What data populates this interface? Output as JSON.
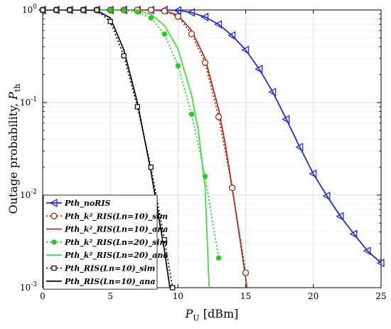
{
  "chart_data": {
    "type": "line",
    "title": "",
    "xlabel": "P_U [dBm]",
    "ylabel": "Outage probability, P_th",
    "xlim": [
      0,
      25
    ],
    "ylim": [
      0.001,
      1
    ],
    "yscale": "log",
    "x_ticks": [
      0,
      5,
      10,
      15,
      20,
      25
    ],
    "y_ticks": [
      {
        "value": 1,
        "label": "10^0"
      },
      {
        "value": 0.1,
        "label": "10^-1"
      },
      {
        "value": 0.01,
        "label": "10^-2"
      },
      {
        "value": 0.001,
        "label": "10^-3"
      }
    ],
    "grid": true,
    "legend_position": "bottom-left",
    "series": [
      {
        "name": "Pth_noRIS",
        "color": "#1f2fd6",
        "dash": "solid",
        "marker": "triangle-left",
        "marker_fill": "none",
        "x": [
          0,
          1,
          2,
          3,
          4,
          5,
          6,
          7,
          8,
          9,
          10,
          11,
          12,
          13,
          14,
          15,
          16,
          17,
          18,
          19,
          20,
          21,
          22,
          23,
          24,
          25
        ],
        "y": [
          1,
          1,
          1,
          1,
          1,
          1,
          1,
          1,
          1,
          1,
          0.99,
          0.94,
          0.84,
          0.7,
          0.53,
          0.37,
          0.23,
          0.13,
          0.066,
          0.033,
          0.017,
          0.0098,
          0.0059,
          0.0038,
          0.0025,
          0.00185
        ]
      },
      {
        "name": "Pth_k²_RIS(Ln=10)_sim",
        "color": "#a52a00",
        "dash": "dotted",
        "marker": "circle",
        "marker_fill": "none",
        "x": [
          0,
          1,
          2,
          3,
          4,
          5,
          6,
          7,
          8,
          9,
          10,
          11,
          12,
          13,
          14,
          15
        ],
        "y": [
          1,
          1,
          1,
          1,
          1,
          1,
          1,
          1,
          1,
          0.97,
          0.85,
          0.55,
          0.27,
          0.07,
          0.012,
          0.00145
        ]
      },
      {
        "name": "Pth_k²_RIS(Ln=10)_ana",
        "color": "#b03020",
        "dash": "solid",
        "marker": "none",
        "marker_fill": "none",
        "x": [
          0,
          1,
          2,
          3,
          4,
          5,
          6,
          7,
          8,
          9,
          10,
          11,
          12,
          13,
          13.5,
          14,
          14.5,
          15.1
        ],
        "y": [
          1,
          1,
          1,
          1,
          1,
          1,
          1,
          1,
          1,
          0.98,
          0.88,
          0.6,
          0.3,
          0.085,
          0.035,
          0.012,
          0.004,
          0.001
        ]
      },
      {
        "name": "Pth_k²_RIS(Ln=20)_sim",
        "color": "#22cc22",
        "dash": "dotted",
        "marker": "circle",
        "marker_fill": "filled",
        "x": [
          0,
          1,
          2,
          3,
          4,
          5,
          6,
          7,
          8,
          9,
          10,
          11,
          12,
          13
        ],
        "y": [
          1,
          1,
          1,
          1,
          1,
          1,
          0.99,
          0.95,
          0.82,
          0.55,
          0.25,
          0.075,
          0.016,
          0.0021
        ]
      },
      {
        "name": "Pth_k²_RIS(Ln=20)_ana",
        "color": "#44dd44",
        "dash": "solid",
        "marker": "none",
        "marker_fill": "none",
        "x": [
          0,
          1,
          2,
          3,
          4,
          5,
          6,
          7,
          8,
          9,
          10,
          11,
          11.5,
          12,
          12.3
        ],
        "y": [
          1,
          1,
          1,
          1,
          1,
          1,
          1,
          0.98,
          0.9,
          0.68,
          0.38,
          0.12,
          0.05,
          0.012,
          0.001
        ]
      },
      {
        "name": "Pth_RIS(Ln=10)_sim",
        "color": "#111111",
        "dash": "dotted",
        "marker": "square",
        "marker_fill": "none",
        "x": [
          0,
          1,
          2,
          3,
          4,
          5,
          6,
          7,
          8,
          9,
          9.6
        ],
        "y": [
          1,
          1,
          1,
          1,
          1,
          0.75,
          0.32,
          0.09,
          0.02,
          0.0033,
          0.001
        ]
      },
      {
        "name": "Pth_RIS(Ln=10)_ana",
        "color": "#111111",
        "dash": "solid",
        "marker": "none",
        "marker_fill": "none",
        "x": [
          0,
          1,
          2,
          3,
          4,
          5,
          6,
          7,
          8,
          9,
          9.4
        ],
        "y": [
          1,
          1,
          1,
          1,
          0.99,
          0.82,
          0.37,
          0.1,
          0.018,
          0.0025,
          0.001
        ]
      }
    ]
  }
}
